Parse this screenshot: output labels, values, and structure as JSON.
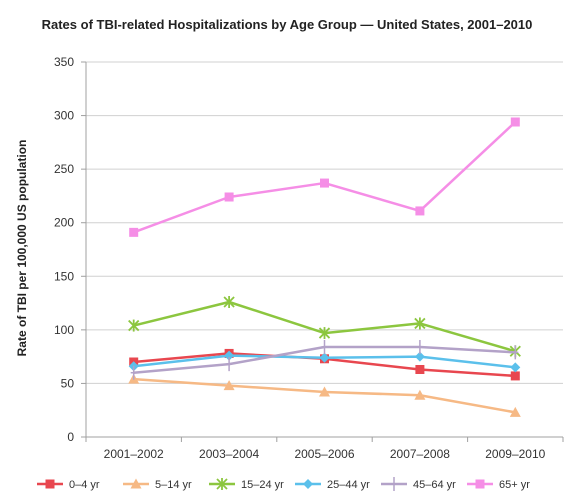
{
  "chart_data": {
    "type": "line",
    "title": "Rates of TBI-related Hospitalizations by Age Group — United States, 2001–2010",
    "xlabel": "",
    "ylabel": "Rate of TBI per 100,000 US population",
    "ylim": [
      0,
      350
    ],
    "yticks": [
      0,
      50,
      100,
      150,
      200,
      250,
      300,
      350
    ],
    "categories": [
      "2001–2002",
      "2003–2004",
      "2005–2006",
      "2007–2008",
      "2009–2010"
    ],
    "grid": "horizontal",
    "legend_position": "bottom",
    "series": [
      {
        "name": "0–4 yr",
        "color": "#e8474f",
        "marker": "square",
        "values": [
          70,
          78,
          73,
          63,
          57
        ]
      },
      {
        "name": "5–14 yr",
        "color": "#f6b985",
        "marker": "triangle",
        "values": [
          54,
          48,
          42,
          39,
          23
        ]
      },
      {
        "name": "15–24 yr",
        "color": "#8cc63f",
        "marker": "star",
        "values": [
          104,
          126,
          97,
          106,
          80
        ]
      },
      {
        "name": "25–44 yr",
        "color": "#5bc0eb",
        "marker": "diamond",
        "values": [
          66,
          76,
          74,
          75,
          65
        ]
      },
      {
        "name": "45–64 yr",
        "color": "#b3a2c8",
        "marker": "plus",
        "values": [
          60,
          68,
          84,
          84,
          79
        ]
      },
      {
        "name": "65+ yr",
        "color": "#f58ee6",
        "marker": "square",
        "values": [
          191,
          224,
          237,
          211,
          294
        ]
      }
    ]
  }
}
